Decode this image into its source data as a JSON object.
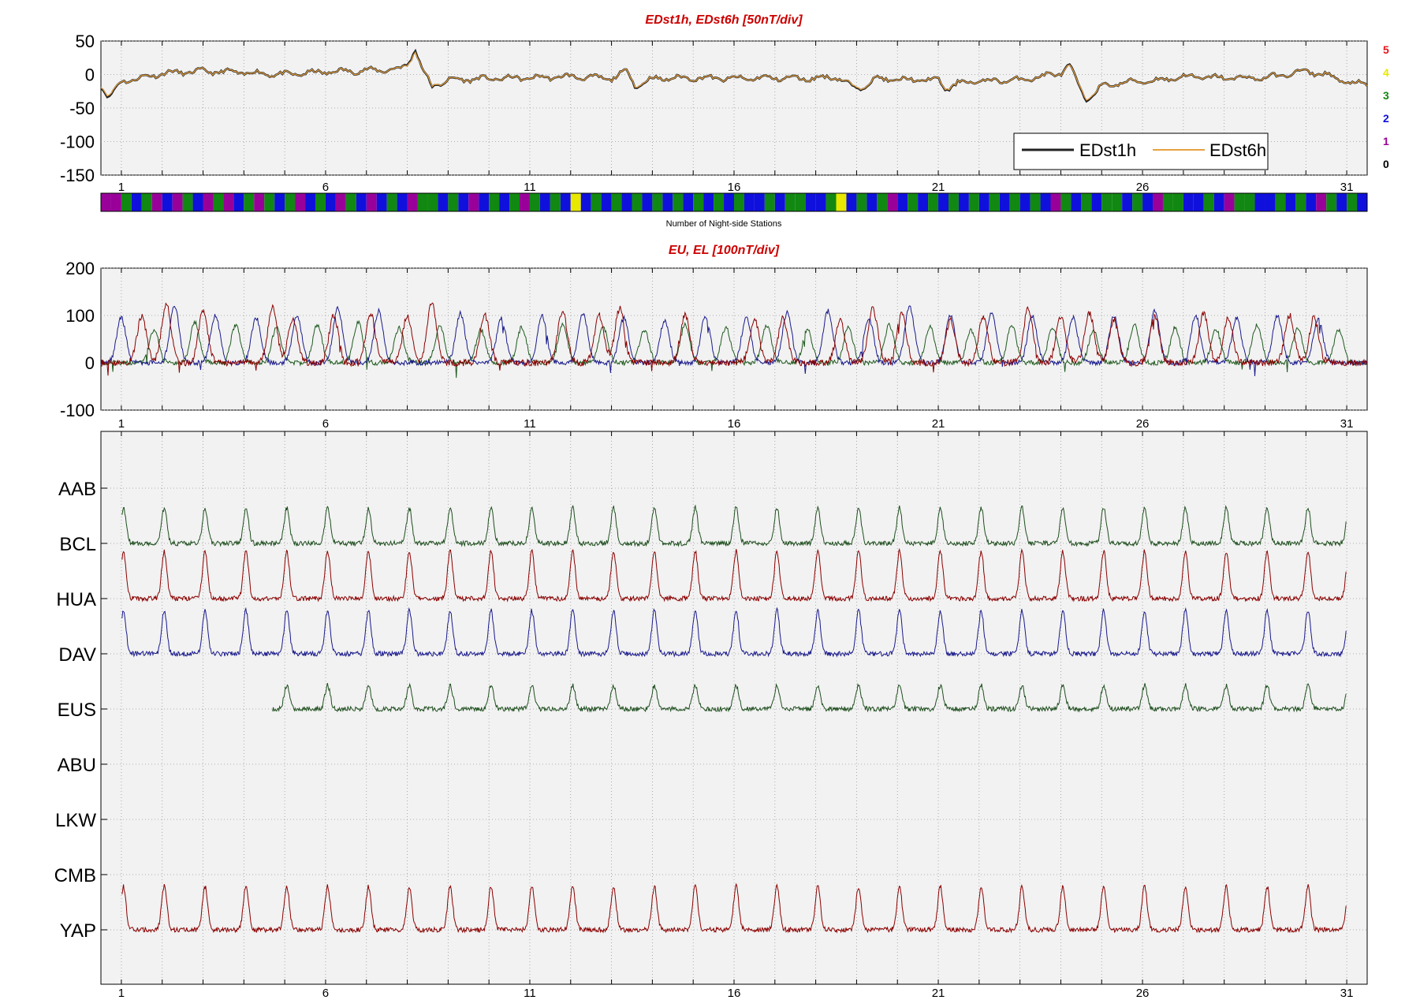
{
  "chart_data": [
    {
      "type": "line",
      "title": "EDst1h, EDst6h [50nT/div]",
      "xlabel": "",
      "ylabel": "",
      "x_ticks": [
        "1",
        "6",
        "11",
        "16",
        "21",
        "26",
        "31"
      ],
      "y_ticks": [
        "50",
        "0",
        "-50",
        "-100",
        "-150"
      ],
      "ylim": [
        -150,
        50
      ],
      "xlim": [
        0.5,
        31.5
      ],
      "grid": true,
      "legend_position": "bottom-right",
      "series": [
        {
          "name": "EDst1h",
          "color": "#222222",
          "x": [
            0.5,
            0.7,
            1.0,
            1.5,
            2.0,
            3.0,
            4.0,
            5.0,
            6.0,
            7.0,
            7.8,
            8.0,
            8.2,
            8.35,
            8.6,
            9.0,
            10.0,
            11.0,
            12.0,
            13.0,
            13.4,
            13.6,
            14.0,
            15.0,
            16.0,
            17.0,
            18.0,
            18.5,
            19.0,
            19.5,
            20.0,
            21.0,
            21.2,
            21.5,
            22.0,
            23.0,
            24.0,
            24.2,
            24.6,
            25.0,
            25.5,
            26.0,
            26.5,
            27.0,
            28.0,
            29.0,
            30.0,
            30.6,
            31.0,
            31.5
          ],
          "y": [
            -15,
            -35,
            -10,
            -5,
            2,
            5,
            3,
            0,
            4,
            6,
            8,
            15,
            38,
            10,
            -18,
            -8,
            -6,
            -5,
            -3,
            -6,
            5,
            -18,
            -6,
            -5,
            -6,
            -5,
            -6,
            -3,
            -22,
            -6,
            -8,
            -8,
            -22,
            -12,
            -10,
            -8,
            2,
            15,
            -38,
            -18,
            -12,
            -10,
            -8,
            -3,
            -5,
            -5,
            5,
            -2,
            -12,
            -15
          ]
        },
        {
          "name": "EDst6h",
          "color": "#e6a040",
          "x": [
            0.5,
            0.7,
            1.0,
            1.5,
            2.0,
            3.0,
            4.0,
            5.0,
            6.0,
            7.0,
            7.8,
            8.0,
            8.2,
            8.35,
            8.6,
            9.0,
            10.0,
            11.0,
            12.0,
            13.0,
            13.4,
            13.6,
            14.0,
            15.0,
            16.0,
            17.0,
            18.0,
            18.5,
            19.0,
            19.5,
            20.0,
            21.0,
            21.2,
            21.5,
            22.0,
            23.0,
            24.0,
            24.2,
            24.6,
            25.0,
            25.5,
            26.0,
            26.5,
            27.0,
            28.0,
            29.0,
            30.0,
            30.6,
            31.0,
            31.5
          ],
          "y": [
            -14,
            -33,
            -10,
            -5,
            2,
            5,
            3,
            0,
            4,
            6,
            8,
            14,
            36,
            10,
            -17,
            -8,
            -6,
            -5,
            -3,
            -6,
            5,
            -17,
            -6,
            -5,
            -6,
            -5,
            -6,
            -3,
            -21,
            -6,
            -8,
            -8,
            -21,
            -12,
            -10,
            -8,
            2,
            14,
            -36,
            -18,
            -12,
            -10,
            -8,
            -3,
            -5,
            -5,
            5,
            -2,
            -12,
            -15
          ]
        }
      ]
    },
    {
      "type": "heatmap",
      "xlabel": "Number of Night-side Stations",
      "scale_labels": [
        "5",
        "4",
        "3",
        "2",
        "1",
        "0"
      ],
      "scale_colors": [
        "#e8141c",
        "#e8e800",
        "#118811",
        "#1010dd",
        "#990099",
        "#000000"
      ],
      "x_start_day": 0.5,
      "step_days": 0.25,
      "values": [
        1,
        1,
        3,
        2,
        3,
        1,
        2,
        1,
        3,
        2,
        1,
        3,
        1,
        2,
        3,
        1,
        3,
        2,
        3,
        1,
        2,
        3,
        2,
        1,
        3,
        2,
        1,
        2,
        3,
        2,
        1,
        3,
        3,
        2,
        3,
        2,
        1,
        2,
        3,
        2,
        3,
        1,
        3,
        2,
        3,
        2,
        4,
        2,
        3,
        2,
        3,
        2,
        3,
        2,
        3,
        2,
        3,
        2,
        3,
        2,
        3,
        2,
        3,
        2,
        2,
        3,
        2,
        3,
        3,
        2,
        2,
        3,
        4,
        2,
        3,
        2,
        3,
        1,
        2,
        3,
        2,
        3,
        2,
        3,
        2,
        3,
        2,
        3,
        2,
        3,
        2,
        3,
        2,
        1,
        3,
        2,
        3,
        2,
        3,
        3,
        2,
        3,
        2,
        1,
        3,
        3,
        2,
        2,
        3,
        2,
        1,
        3,
        3,
        2,
        2,
        3,
        2,
        3,
        2,
        1,
        3,
        2,
        3,
        2,
        3,
        2,
        1,
        2
      ]
    },
    {
      "type": "line",
      "title": "EU, EL   [100nT/div]",
      "xlabel": "",
      "ylabel": "",
      "x_ticks": [
        "1",
        "6",
        "11",
        "16",
        "21",
        "26",
        "31"
      ],
      "y_ticks": [
        "200",
        "100",
        "0",
        "-100"
      ],
      "ylim": [
        -100,
        200
      ],
      "xlim": [
        0.5,
        31.5
      ],
      "grid": true,
      "series": [
        {
          "color": "#8b0000",
          "peak_days": [
            1.5,
            2.1,
            3.0,
            4.7,
            5.2,
            6.2,
            7.1,
            8.0,
            8.6,
            9.9,
            11.8,
            12.7,
            13.2,
            14.8,
            16.5,
            17.2,
            18.6,
            19.4,
            20.1,
            21.3,
            22.1,
            23.2,
            24.0,
            24.7,
            25.3,
            26.3,
            27.5,
            28.1,
            29.6,
            30.2
          ],
          "peak_values": [
            100,
            125,
            110,
            115,
            95,
            100,
            105,
            100,
            125,
            100,
            110,
            100,
            115,
            100,
            90,
            95,
            90,
            115,
            105,
            90,
            100,
            115,
            100,
            105,
            90,
            100,
            105,
            95,
            100,
            95
          ]
        },
        {
          "color": "#1a1a8c",
          "peak_days": [
            1.0,
            2.3,
            3.3,
            4.3,
            5.3,
            6.3,
            7.3,
            9.3,
            10.3,
            11.3,
            12.3,
            13.3,
            14.3,
            15.3,
            16.3,
            17.3,
            18.3,
            19.3,
            20.3,
            21.3,
            22.3,
            23.3,
            24.3,
            25.3,
            26.3,
            27.3,
            28.3,
            29.3,
            30.3
          ],
          "peak_values": [
            95,
            120,
            100,
            95,
            100,
            115,
            110,
            105,
            95,
            100,
            105,
            95,
            90,
            100,
            95,
            105,
            110,
            95,
            120,
            100,
            105,
            100,
            95,
            100,
            110,
            100,
            95,
            100,
            95
          ]
        },
        {
          "color": "#1f5a1f",
          "peak_days": [
            1.8,
            2.8,
            3.8,
            4.8,
            5.8,
            6.8,
            7.8,
            8.8,
            9.8,
            10.8,
            11.8,
            12.8,
            13.8,
            14.8,
            15.8,
            16.8,
            17.8,
            18.8,
            19.8,
            20.8,
            21.8,
            22.8,
            23.8,
            24.8,
            25.8,
            26.8,
            27.8,
            28.8,
            29.8,
            30.8
          ],
          "peak_values": [
            70,
            85,
            80,
            75,
            80,
            85,
            75,
            80,
            70,
            75,
            80,
            75,
            70,
            80,
            75,
            80,
            70,
            75,
            80,
            75,
            70,
            80,
            75,
            70,
            80,
            75,
            70,
            80,
            75,
            70
          ]
        }
      ]
    },
    {
      "type": "line",
      "title": "",
      "stations": [
        "AAB",
        "BCL",
        "HUA",
        "DAV",
        "EUS",
        "ABU",
        "LKW",
        "CMB",
        "YAP"
      ],
      "x_ticks": [
        "1",
        "6",
        "11",
        "16",
        "21",
        "26",
        "31"
      ],
      "xlim": [
        0.5,
        31.5
      ],
      "grid": true,
      "series": [
        {
          "name": "AAB",
          "color": "#1f4f1f",
          "baseline_station": "BCL",
          "peak_amplitude": 45,
          "days": [
            1,
            31
          ]
        },
        {
          "name": "BCL",
          "color": "#8b0000",
          "baseline_station": "HUA",
          "peak_amplitude": 60,
          "days": [
            1,
            31
          ]
        },
        {
          "name": "HUA",
          "color": "#1a1a8c",
          "baseline_station": "DAV",
          "peak_amplitude": 55,
          "days": [
            1,
            31
          ]
        },
        {
          "name": "DAV",
          "color": "#1f4f1f",
          "baseline_station": "EUS",
          "peak_amplitude": 30,
          "days": [
            4.7,
            31
          ]
        },
        {
          "name": "CMB",
          "color": "#8b0000",
          "baseline_station": "YAP",
          "peak_amplitude": 55,
          "days": [
            1,
            31
          ]
        }
      ]
    }
  ]
}
